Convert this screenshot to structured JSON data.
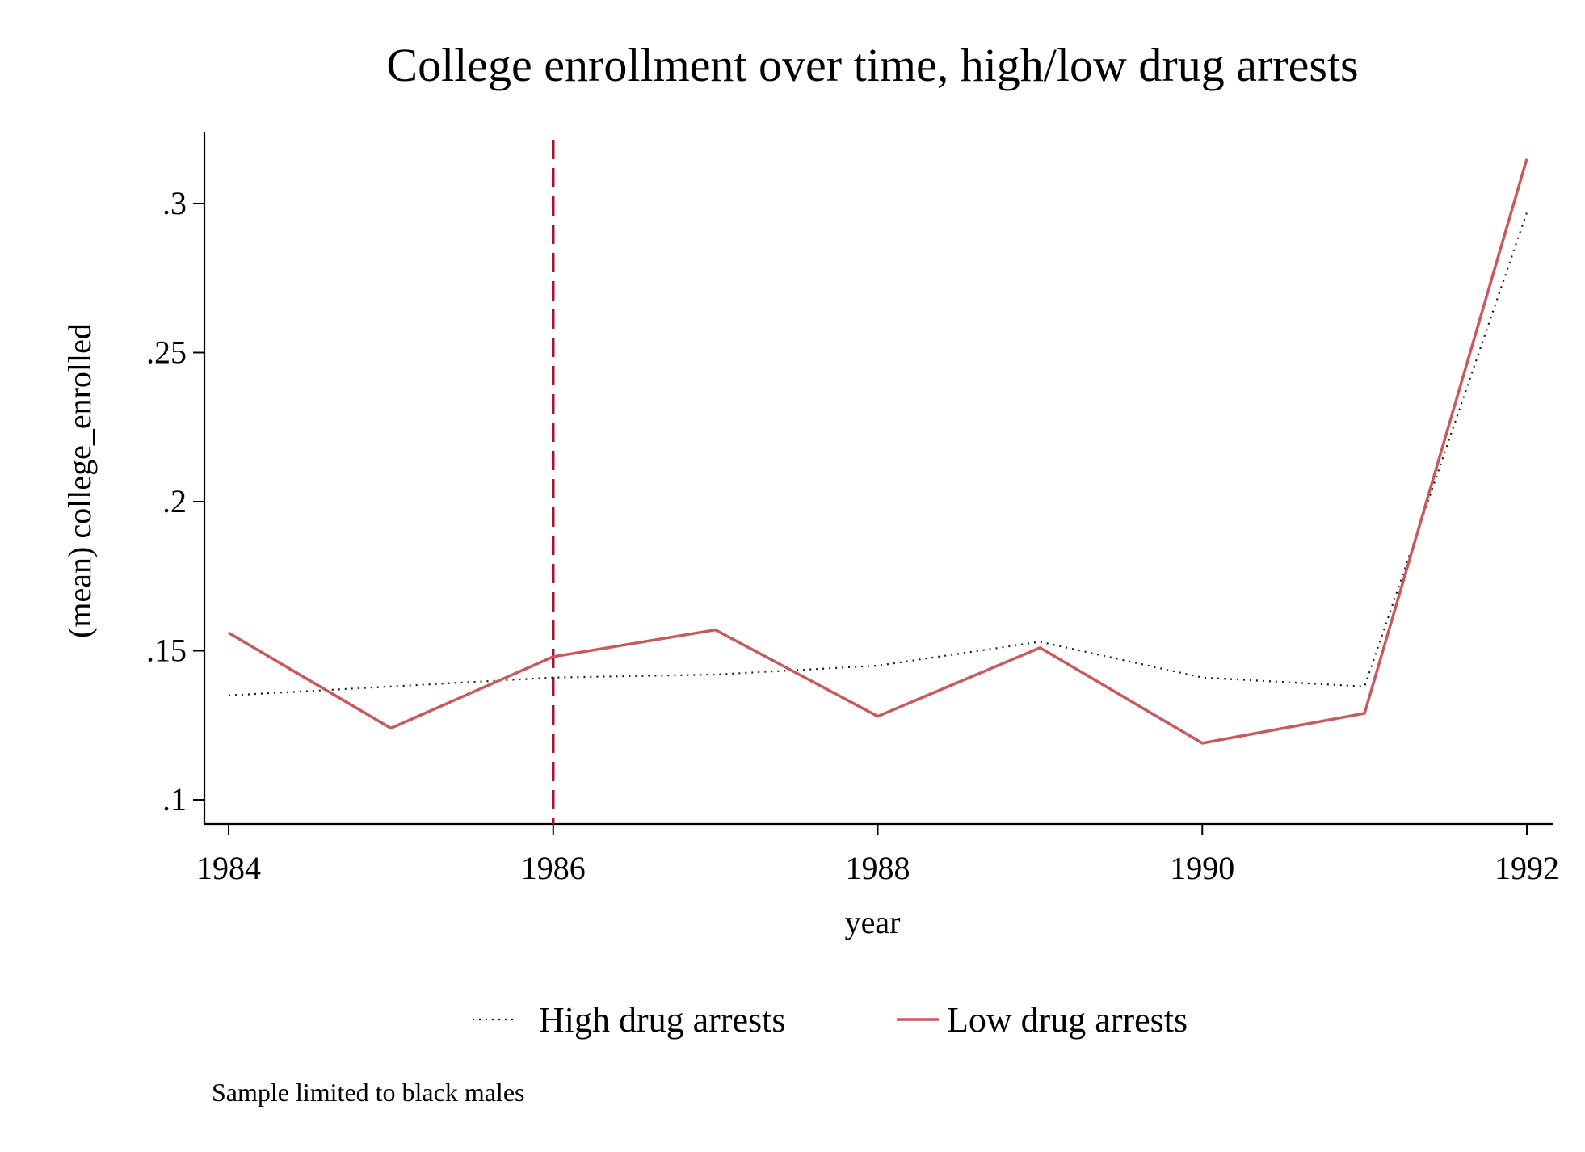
{
  "chart_data": {
    "type": "line",
    "title": "College enrollment over time, high/low drug arrests",
    "xlabel": "year",
    "ylabel": "(mean) college_enrolled",
    "xlim": [
      1984,
      1992
    ],
    "ylim": [
      0.1,
      0.3
    ],
    "x_ticks": [
      1984,
      1986,
      1988,
      1990,
      1992
    ],
    "x_tick_labels": [
      "1984",
      "1986",
      "1988",
      "1990",
      "1992"
    ],
    "y_ticks": [
      0.1,
      0.15,
      0.2,
      0.25,
      0.3
    ],
    "y_tick_labels": [
      ".1",
      ".15",
      ".2",
      ".25",
      ".3"
    ],
    "grid": false,
    "legend_position": "bottom",
    "x": [
      1984,
      1985,
      1986,
      1987,
      1988,
      1989,
      1990,
      1991,
      1992
    ],
    "series": [
      {
        "name": "High drug arrests",
        "style": "dotted",
        "color": "#1a1a1a",
        "values": [
          0.135,
          0.138,
          0.141,
          0.142,
          0.145,
          0.153,
          0.141,
          0.138,
          0.297
        ]
      },
      {
        "name": "Low drug arrests",
        "style": "solid",
        "color": "#c8595c",
        "values": [
          0.156,
          0.124,
          0.148,
          0.157,
          0.128,
          0.151,
          0.119,
          0.129,
          0.315
        ]
      }
    ],
    "reference_line": {
      "x": 1986,
      "style": "dashed",
      "color": "#a3162b"
    },
    "note": "Sample limited to black males"
  }
}
